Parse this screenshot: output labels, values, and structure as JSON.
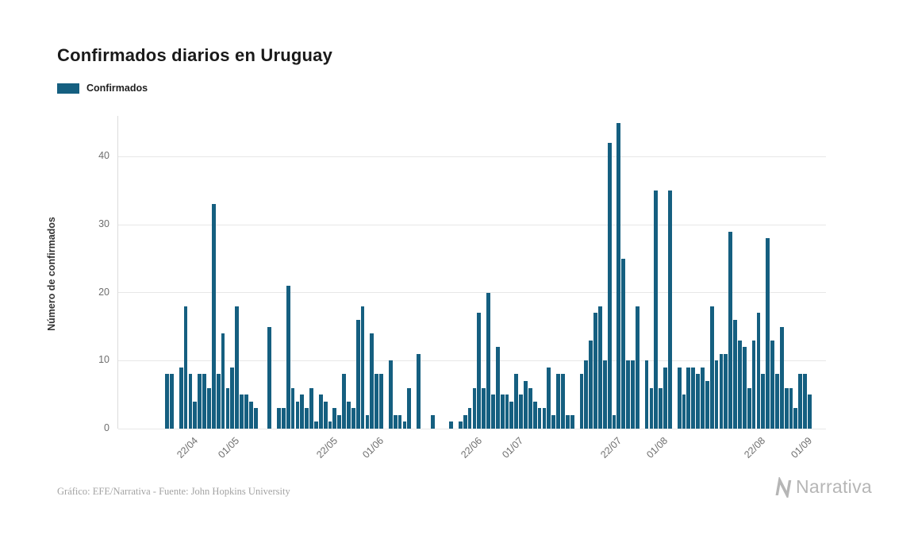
{
  "page": {
    "title": "Confirmados diarios en Uruguay",
    "footer_credit": "Gráfico: EFE/Narrativa - Fuente: John Hopkins University",
    "brand_name": "Narrativa",
    "brand_color": "#b6b6b6"
  },
  "legend": {
    "label": "Confirmados",
    "color": "#155f80"
  },
  "chart_data": {
    "type": "bar",
    "title": "Confirmados diarios en Uruguay",
    "series_name": "Confirmados",
    "xlabel": "",
    "ylabel": "Número de confirmados",
    "bar_color": "#155f80",
    "grid": "horizontal",
    "legend_position": "top-left",
    "ylim": [
      0,
      46
    ],
    "yticks": [
      0,
      10,
      20,
      30,
      40
    ],
    "xticks": [
      "22/04",
      "01/05",
      "22/05",
      "01/06",
      "22/06",
      "01/07",
      "22/07",
      "01/08",
      "22/08",
      "01/09"
    ],
    "domain_pad_left_days": 6,
    "domain_pad_right_days": 3,
    "dates": [
      "12/04",
      "13/04",
      "14/04",
      "15/04",
      "16/04",
      "17/04",
      "18/04",
      "19/04",
      "20/04",
      "21/04",
      "22/04",
      "23/04",
      "24/04",
      "25/04",
      "26/04",
      "27/04",
      "28/04",
      "29/04",
      "30/04",
      "01/05",
      "02/05",
      "03/05",
      "04/05",
      "05/05",
      "06/05",
      "07/05",
      "08/05",
      "09/05",
      "10/05",
      "11/05",
      "12/05",
      "13/05",
      "14/05",
      "15/05",
      "16/05",
      "17/05",
      "18/05",
      "19/05",
      "20/05",
      "21/05",
      "22/05",
      "23/05",
      "24/05",
      "25/05",
      "26/05",
      "27/05",
      "28/05",
      "29/05",
      "30/05",
      "31/05",
      "01/06",
      "02/06",
      "03/06",
      "04/06",
      "05/06",
      "06/06",
      "07/06",
      "08/06",
      "09/06",
      "10/06",
      "11/06",
      "12/06",
      "13/06",
      "14/06",
      "15/06",
      "16/06",
      "17/06",
      "18/06",
      "19/06",
      "20/06",
      "21/06",
      "22/06",
      "23/06",
      "24/06",
      "25/06",
      "26/06",
      "27/06",
      "28/06",
      "29/06",
      "30/06",
      "01/07",
      "02/07",
      "03/07",
      "04/07",
      "05/07",
      "06/07",
      "07/07",
      "08/07",
      "09/07",
      "10/07",
      "11/07",
      "12/07",
      "13/07",
      "14/07",
      "15/07",
      "16/07",
      "17/07",
      "18/07",
      "19/07",
      "20/07",
      "21/07",
      "22/07",
      "23/07",
      "24/07",
      "25/07",
      "26/07",
      "27/07",
      "28/07",
      "29/07",
      "30/07",
      "31/07",
      "01/08",
      "02/08",
      "03/08",
      "04/08",
      "05/08",
      "06/08",
      "07/08",
      "08/08",
      "09/08",
      "10/08",
      "11/08",
      "12/08",
      "13/08",
      "14/08",
      "15/08",
      "16/08",
      "17/08",
      "18/08",
      "19/08",
      "20/08",
      "21/08",
      "22/08",
      "23/08",
      "24/08",
      "25/08",
      "26/08",
      "27/08",
      "28/08",
      "29/08",
      "30/08",
      "31/08",
      "01/09"
    ],
    "values": [
      0,
      0,
      0,
      0,
      8,
      8,
      0,
      9,
      18,
      8,
      4,
      8,
      8,
      6,
      33,
      8,
      14,
      6,
      9,
      18,
      5,
      5,
      4,
      3,
      0,
      0,
      15,
      0,
      3,
      3,
      21,
      6,
      4,
      5,
      3,
      6,
      1,
      5,
      4,
      1,
      3,
      2,
      8,
      4,
      3,
      16,
      18,
      2,
      14,
      8,
      8,
      0,
      10,
      2,
      2,
      1,
      6,
      0,
      11,
      0,
      0,
      2,
      0,
      0,
      0,
      1,
      0,
      1,
      2,
      3,
      6,
      17,
      6,
      20,
      5,
      12,
      5,
      5,
      4,
      8,
      5,
      7,
      6,
      4,
      3,
      3,
      9,
      2,
      8,
      8,
      2,
      2,
      0,
      8,
      10,
      13,
      17,
      18,
      10,
      42,
      2,
      45,
      25,
      10,
      10,
      18,
      0,
      10,
      6,
      35,
      6,
      9,
      35,
      0,
      9,
      5,
      9,
      9,
      8,
      9,
      7,
      18,
      10,
      11,
      11,
      29,
      16,
      13,
      12,
      6,
      13,
      17,
      8,
      28,
      13,
      8,
      15,
      6,
      6,
      3,
      8,
      8,
      5
    ]
  }
}
